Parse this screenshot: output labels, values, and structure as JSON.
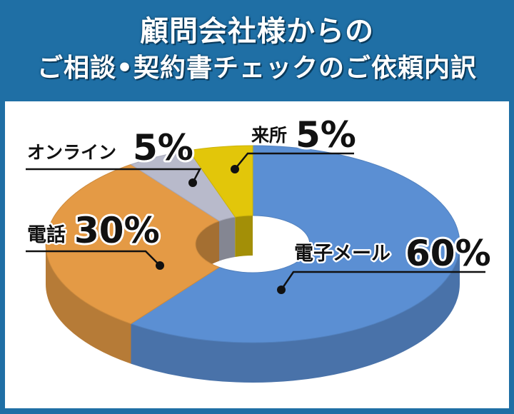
{
  "header": {
    "title_line1": "顧問会社様からの",
    "title_line2": "ご相談•契約書チェックのご依頼内訳"
  },
  "chart_data": {
    "type": "pie",
    "style": "3d-donut",
    "title": "顧問会社様からのご相談•契約書チェックのご依頼内訳",
    "slices": [
      {
        "label": "電子メール",
        "value": 60,
        "value_label": "60%",
        "color": "#5b8fd3"
      },
      {
        "label": "電話",
        "value": 30,
        "value_label": "30%",
        "color": "#e49a45"
      },
      {
        "label": "オンライン",
        "value": 5,
        "value_label": "5%",
        "color": "#b8bacb"
      },
      {
        "label": "来所",
        "value": 5,
        "value_label": "5%",
        "color": "#e2c60a"
      }
    ]
  },
  "colors": {
    "header_bg": "#1f6fa5",
    "panel_bg": "#ffffff"
  }
}
